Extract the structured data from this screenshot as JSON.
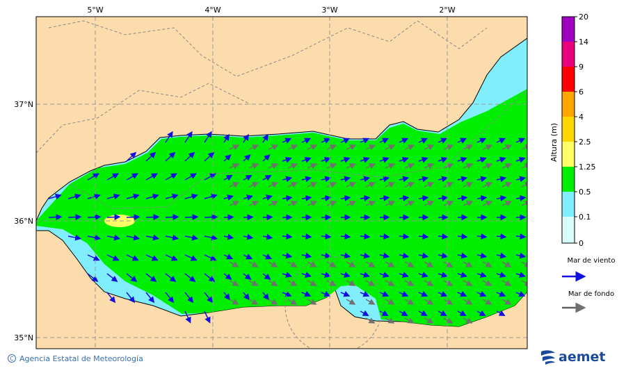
{
  "map": {
    "lon_labels": [
      "5°W",
      "4°W",
      "3°W",
      "2°W"
    ],
    "lat_labels": [
      "37°N",
      "36°N",
      "35°N"
    ]
  },
  "colorbar": {
    "title": "Altura (m)",
    "levels": [
      "20",
      "14",
      "9",
      "6",
      "4",
      "2.5",
      "1.25",
      "0.5",
      "0.1",
      "0"
    ]
  },
  "legend": {
    "wind_sea": "Mar de viento",
    "swell": "Mar de fondo"
  },
  "footer": {
    "credit": "Agencia Estatal de Meteorología",
    "logo": "aemet"
  }
}
